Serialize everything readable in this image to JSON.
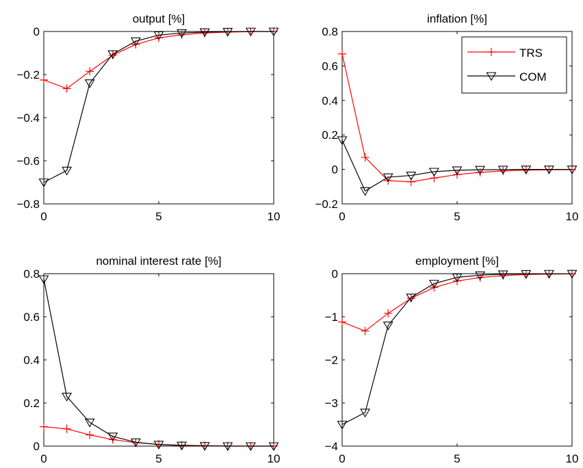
{
  "chart_data": [
    {
      "type": "line",
      "title": "output [%]",
      "x": [
        0,
        1,
        2,
        3,
        4,
        5,
        6,
        7,
        8,
        9,
        10
      ],
      "xlim": [
        0,
        10
      ],
      "ylim": [
        -0.8,
        0
      ],
      "xticks": [
        0,
        5,
        10
      ],
      "yticks": [
        -0.8,
        -0.6,
        -0.4,
        -0.2,
        0
      ],
      "xtick_labels": [
        "0",
        "5",
        "10"
      ],
      "ytick_labels": [
        "−0.8",
        "−0.6",
        "−0.4",
        "−0.2",
        "0"
      ],
      "series": [
        {
          "name": "TRS",
          "color": "#ff0000",
          "marker": "plus",
          "values": [
            -0.225,
            -0.265,
            -0.185,
            -0.11,
            -0.06,
            -0.03,
            -0.015,
            -0.007,
            -0.003,
            -0.001,
            0
          ]
        },
        {
          "name": "COM",
          "color": "#000000",
          "marker": "triangle-down",
          "values": [
            -0.7,
            -0.645,
            -0.24,
            -0.105,
            -0.045,
            -0.017,
            -0.007,
            -0.003,
            -0.001,
            0,
            0
          ]
        }
      ],
      "legend": null
    },
    {
      "type": "line",
      "title": "inflation [%]",
      "x": [
        0,
        1,
        2,
        3,
        4,
        5,
        6,
        7,
        8,
        9,
        10
      ],
      "xlim": [
        0,
        10
      ],
      "ylim": [
        -0.2,
        0.8
      ],
      "xticks": [
        0,
        5,
        10
      ],
      "yticks": [
        -0.2,
        0,
        0.2,
        0.4,
        0.6,
        0.8
      ],
      "xtick_labels": [
        "0",
        "5",
        "10"
      ],
      "ytick_labels": [
        "−0.2",
        "0",
        "0.2",
        "0.4",
        "0.6",
        "0.8"
      ],
      "series": [
        {
          "name": "TRS",
          "color": "#ff0000",
          "marker": "plus",
          "values": [
            0.67,
            0.07,
            -0.065,
            -0.072,
            -0.05,
            -0.03,
            -0.017,
            -0.009,
            -0.004,
            -0.002,
            -0.001
          ]
        },
        {
          "name": "COM",
          "color": "#000000",
          "marker": "triangle-down",
          "values": [
            0.17,
            -0.125,
            -0.045,
            -0.035,
            -0.013,
            -0.005,
            -0.002,
            -0.001,
            0,
            0,
            0
          ]
        }
      ],
      "legend": {
        "position": "top-right",
        "entries": [
          "TRS",
          "COM"
        ]
      }
    },
    {
      "type": "line",
      "title": "nominal interest rate [%]",
      "x": [
        0,
        1,
        2,
        3,
        4,
        5,
        6,
        7,
        8,
        9,
        10
      ],
      "xlim": [
        0,
        10
      ],
      "ylim": [
        0,
        0.8
      ],
      "xticks": [
        0,
        5,
        10
      ],
      "yticks": [
        0,
        0.2,
        0.4,
        0.6,
        0.8
      ],
      "xtick_labels": [
        "0",
        "5",
        "10"
      ],
      "ytick_labels": [
        "0",
        "0.2",
        "0.4",
        "0.6",
        "0.8"
      ],
      "series": [
        {
          "name": "TRS",
          "color": "#ff0000",
          "marker": "plus",
          "values": [
            0.09,
            0.08,
            0.052,
            0.03,
            0.016,
            0.008,
            0.004,
            0.002,
            0.001,
            0,
            0
          ]
        },
        {
          "name": "COM",
          "color": "#000000",
          "marker": "triangle-down",
          "values": [
            0.775,
            0.23,
            0.11,
            0.045,
            0.018,
            0.007,
            0.003,
            0.001,
            0,
            0,
            0
          ]
        }
      ],
      "legend": null
    },
    {
      "type": "line",
      "title": "employment [%]",
      "x": [
        0,
        1,
        2,
        3,
        4,
        5,
        6,
        7,
        8,
        9,
        10
      ],
      "xlim": [
        0,
        10
      ],
      "ylim": [
        -4,
        0
      ],
      "xticks": [
        0,
        5,
        10
      ],
      "yticks": [
        -4,
        -3,
        -2,
        -1,
        0
      ],
      "xtick_labels": [
        "0",
        "5",
        "10"
      ],
      "ytick_labels": [
        "−4",
        "−3",
        "−2",
        "−1",
        "0"
      ],
      "series": [
        {
          "name": "TRS",
          "color": "#ff0000",
          "marker": "plus",
          "values": [
            -1.12,
            -1.33,
            -0.92,
            -0.57,
            -0.32,
            -0.17,
            -0.09,
            -0.045,
            -0.02,
            -0.01,
            -0.005
          ]
        },
        {
          "name": "COM",
          "color": "#000000",
          "marker": "triangle-down",
          "values": [
            -3.5,
            -3.22,
            -1.2,
            -0.55,
            -0.23,
            -0.085,
            -0.035,
            -0.013,
            -0.005,
            -0.002,
            -0.001
          ]
        }
      ],
      "legend": null
    }
  ]
}
